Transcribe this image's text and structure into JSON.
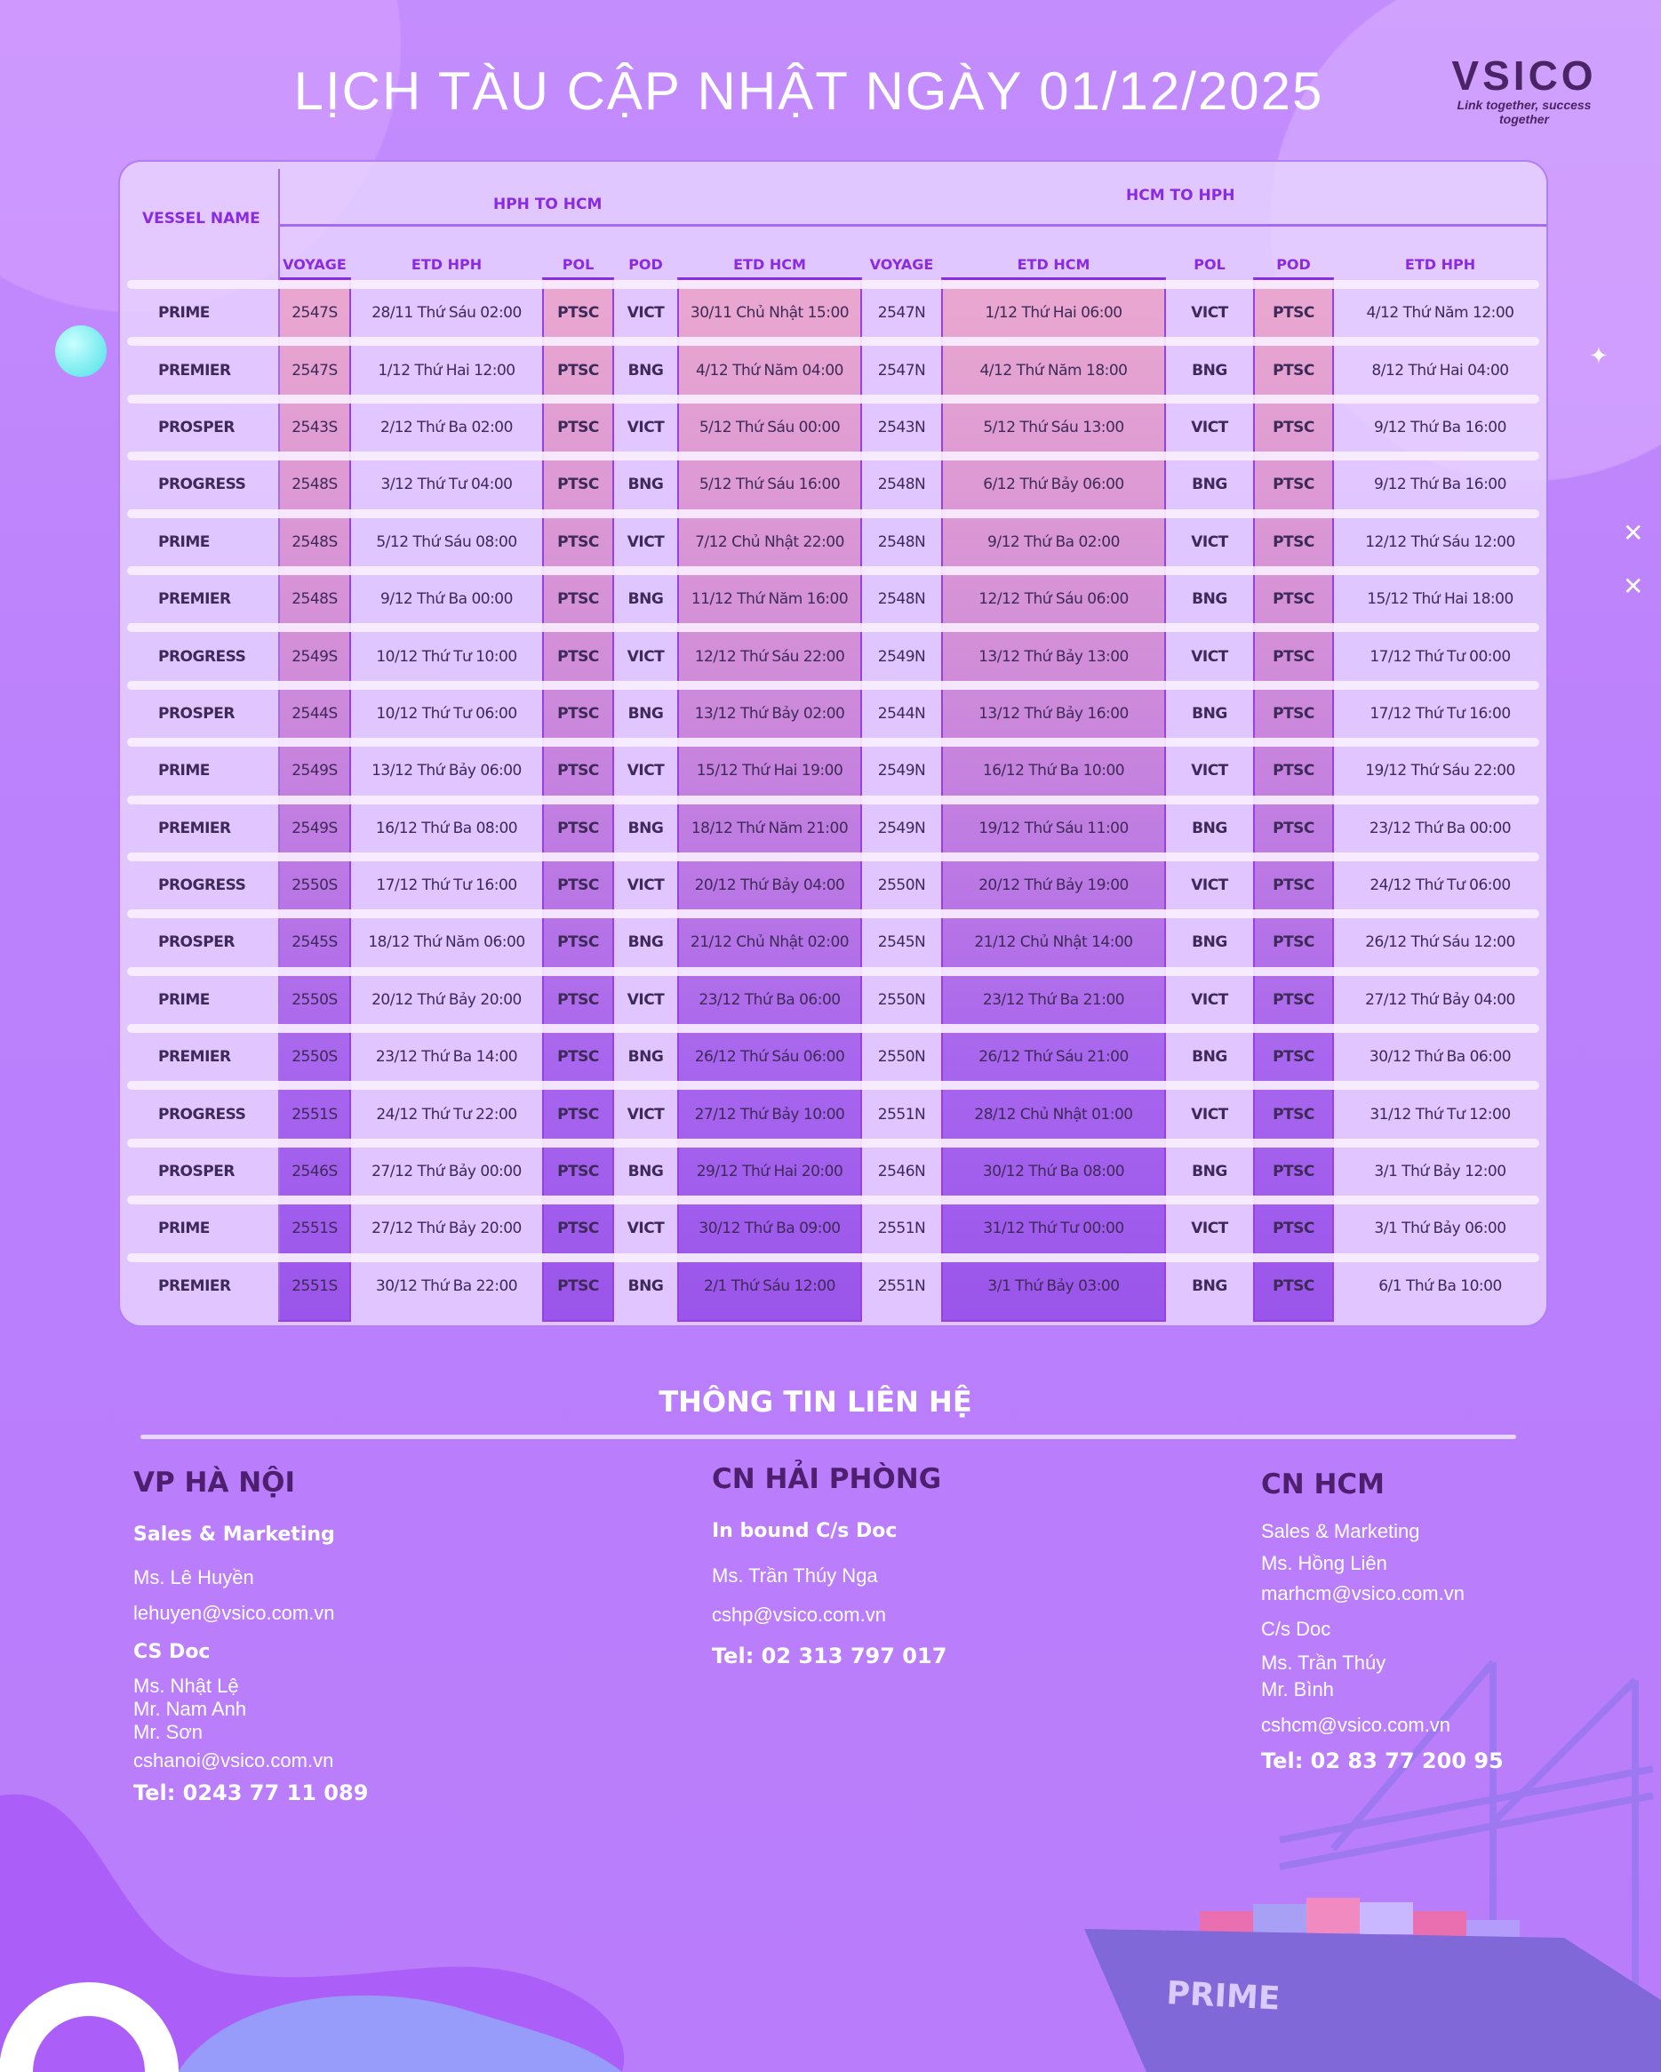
{
  "title": "LỊCH TÀU CẬP NHẬT NGÀY 01/12/2025",
  "logo": {
    "text": "VSICO",
    "tagline": "Link together, success together"
  },
  "colors": {
    "background": "#bb80fc",
    "header_text": "#8a2be2",
    "cell_text": "#3d2a58",
    "heading_dark": "#4e1f6e"
  },
  "table": {
    "vessel_header": "VESSEL NAME",
    "group1": "HPH TO HCM",
    "group2": "HCM TO HPH",
    "columns": [
      "VOYAGE",
      "ETD HPH",
      "POL",
      "POD",
      "ETD HCM",
      "VOYAGE",
      "ETD HCM",
      "POL",
      "POD",
      "ETD HPH"
    ],
    "rows": [
      [
        "PRIME",
        "2547S",
        "28/11 Thứ Sáu 02:00",
        "PTSC",
        "VICT",
        "30/11 Chủ Nhật 15:00",
        "2547N",
        "1/12 Thứ Hai 06:00",
        "VICT",
        "PTSC",
        "4/12 Thứ Năm 12:00"
      ],
      [
        "PREMIER",
        "2547S",
        "1/12 Thứ Hai 12:00",
        "PTSC",
        "BNG",
        "4/12 Thứ Năm 04:00",
        "2547N",
        "4/12 Thứ Năm 18:00",
        "BNG",
        "PTSC",
        "8/12 Thứ Hai 04:00"
      ],
      [
        "PROSPER",
        "2543S",
        "2/12 Thứ Ba 02:00",
        "PTSC",
        "VICT",
        "5/12 Thứ Sáu 00:00",
        "2543N",
        "5/12 Thứ Sáu 13:00",
        "VICT",
        "PTSC",
        "9/12 Thứ Ba 16:00"
      ],
      [
        "PROGRESS",
        "2548S",
        "3/12 Thứ Tư 04:00",
        "PTSC",
        "BNG",
        "5/12 Thứ Sáu 16:00",
        "2548N",
        "6/12 Thứ Bảy 06:00",
        "BNG",
        "PTSC",
        "9/12 Thứ Ba 16:00"
      ],
      [
        "PRIME",
        "2548S",
        "5/12 Thứ Sáu 08:00",
        "PTSC",
        "VICT",
        "7/12 Chủ Nhật 22:00",
        "2548N",
        "9/12 Thứ Ba 02:00",
        "VICT",
        "PTSC",
        "12/12 Thứ Sáu 12:00"
      ],
      [
        "PREMIER",
        "2548S",
        "9/12 Thứ Ba 00:00",
        "PTSC",
        "BNG",
        "11/12 Thứ Năm 16:00",
        "2548N",
        "12/12 Thứ Sáu 06:00",
        "BNG",
        "PTSC",
        "15/12 Thứ Hai 18:00"
      ],
      [
        "PROGRESS",
        "2549S",
        "10/12 Thứ Tư 10:00",
        "PTSC",
        "VICT",
        "12/12 Thứ Sáu 22:00",
        "2549N",
        "13/12 Thứ Bảy 13:00",
        "VICT",
        "PTSC",
        "17/12 Thứ Tư 00:00"
      ],
      [
        "PROSPER",
        "2544S",
        "10/12 Thứ Tư 06:00",
        "PTSC",
        "BNG",
        "13/12 Thứ Bảy 02:00",
        "2544N",
        "13/12 Thứ Bảy 16:00",
        "BNG",
        "PTSC",
        "17/12 Thứ Tư 16:00"
      ],
      [
        "PRIME",
        "2549S",
        "13/12 Thứ Bảy 06:00",
        "PTSC",
        "VICT",
        "15/12 Thứ Hai 19:00",
        "2549N",
        "16/12 Thứ Ba 10:00",
        "VICT",
        "PTSC",
        "19/12 Thứ Sáu 22:00"
      ],
      [
        "PREMIER",
        "2549S",
        "16/12 Thứ Ba 08:00",
        "PTSC",
        "BNG",
        "18/12 Thứ Năm 21:00",
        "2549N",
        "19/12 Thứ Sáu 11:00",
        "BNG",
        "PTSC",
        "23/12 Thứ Ba 00:00"
      ],
      [
        "PROGRESS",
        "2550S",
        "17/12 Thứ Tư 16:00",
        "PTSC",
        "VICT",
        "20/12 Thứ Bảy 04:00",
        "2550N",
        "20/12 Thứ Bảy 19:00",
        "VICT",
        "PTSC",
        "24/12 Thứ Tư 06:00"
      ],
      [
        "PROSPER",
        "2545S",
        "18/12 Thứ Năm 06:00",
        "PTSC",
        "BNG",
        "21/12 Chủ Nhật 02:00",
        "2545N",
        "21/12 Chủ Nhật 14:00",
        "BNG",
        "PTSC",
        "26/12 Thứ Sáu 12:00"
      ],
      [
        "PRIME",
        "2550S",
        "20/12 Thứ Bảy 20:00",
        "PTSC",
        "VICT",
        "23/12 Thứ Ba 06:00",
        "2550N",
        "23/12 Thứ Ba 21:00",
        "VICT",
        "PTSC",
        "27/12 Thứ Bảy 04:00"
      ],
      [
        "PREMIER",
        "2550S",
        "23/12 Thứ Ba 14:00",
        "PTSC",
        "BNG",
        "26/12 Thứ Sáu 06:00",
        "2550N",
        "26/12 Thứ Sáu 21:00",
        "BNG",
        "PTSC",
        "30/12 Thứ Ba 06:00"
      ],
      [
        "PROGRESS",
        "2551S",
        "24/12 Thứ Tư 22:00",
        "PTSC",
        "VICT",
        "27/12 Thứ Bảy 10:00",
        "2551N",
        "28/12 Chủ Nhật 01:00",
        "VICT",
        "PTSC",
        "31/12 Thứ Tư 12:00"
      ],
      [
        "PROSPER",
        "2546S",
        "27/12 Thứ Bảy 00:00",
        "PTSC",
        "BNG",
        "29/12 Thứ Hai 20:00",
        "2546N",
        "30/12 Thứ Ba 08:00",
        "BNG",
        "PTSC",
        "3/1 Thứ Bảy 12:00"
      ],
      [
        "PRIME",
        "2551S",
        "27/12 Thứ Bảy 20:00",
        "PTSC",
        "VICT",
        "30/12 Thứ Ba 09:00",
        "2551N",
        "31/12 Thứ Tư 00:00",
        "VICT",
        "PTSC",
        "3/1 Thứ Bảy 06:00"
      ],
      [
        "PREMIER",
        "2551S",
        "30/12 Thứ Ba 22:00",
        "PTSC",
        "BNG",
        "2/1 Thứ Sáu 12:00",
        "2551N",
        "3/1 Thứ Bảy 03:00",
        "BNG",
        "PTSC",
        "6/1 Thứ Ba 10:00"
      ]
    ]
  },
  "contact": {
    "title": "THÔNG TIN LIÊN HỆ",
    "hanoi": {
      "heading": "VP HÀ NỘI",
      "sales_label": "Sales & Marketing",
      "sales_name": "Ms. Lê Huyền",
      "sales_email": "lehuyen@vsico.com.vn",
      "cs_label": "CS Doc",
      "cs_names": [
        "Ms. Nhật Lệ",
        "Mr. Nam Anh",
        "Mr. Sơn"
      ],
      "cs_email": "cshanoi@vsico.com.vn",
      "tel": "Tel: 0243 77 11 089"
    },
    "haiphong": {
      "heading": "CN HẢI PHÒNG",
      "label": "In bound C/s Doc",
      "name": "Ms. Trần Thúy Nga",
      "email": "cshp@vsico.com.vn",
      "tel": "Tel: 02 313 797 017"
    },
    "hcm": {
      "heading": "CN HCM",
      "sales_label": "Sales & Marketing",
      "sales_name": "Ms. Hồng Liên",
      "sales_email": "marhcm@vsico.com.vn",
      "cs_label": "C/s Doc",
      "cs_names": [
        "Ms. Trần Thúy",
        "Mr. Bình"
      ],
      "cs_email": "cshcm@vsico.com.vn",
      "tel": "Tel: 02 83 77 200 95"
    }
  },
  "ship": {
    "name": "PRIME"
  }
}
